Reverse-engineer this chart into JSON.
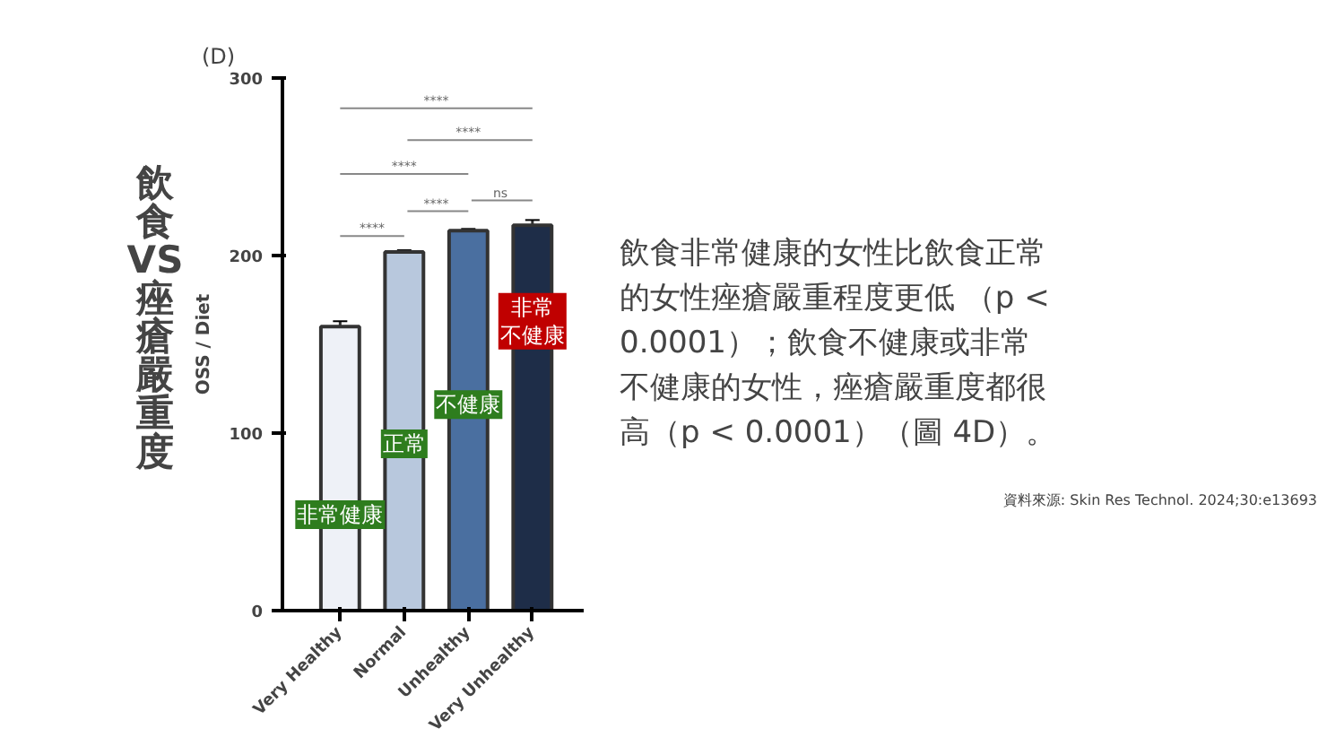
{
  "chart_data": {
    "type": "bar",
    "title": "飲食VS痤瘡嚴重度",
    "subtitle": "飲食非常健康的女性比飲食正常的女性痤瘡嚴重程度更低 （p < 0.0001）；飲食不健康或非常不健康的女性，痤瘡嚴重度都很高（p < 0.0001）（圖 4D）。",
    "ylabel": "OSS / Diet",
    "categories": [
      "Very Healthy",
      "Normal",
      "Unhealthy",
      "Very Unhealthy"
    ],
    "values": [
      160,
      202,
      214,
      217
    ],
    "errors": [
      3,
      1,
      1,
      3
    ],
    "colors": [
      "#eef1f7",
      "#b8c8dd",
      "#4a6fa0",
      "#1e2d48"
    ],
    "ylim": [
      0,
      300
    ],
    "yticks": [
      0,
      100,
      200,
      300
    ],
    "grid": false,
    "annotations": [
      "(D)",
      "****",
      "****",
      "****",
      "****",
      "ns",
      "****",
      "非常健康",
      "正常",
      "不健康",
      "非常不健康",
      "資料來源: Skin Res Technol. 2024;30:e13693"
    ]
  }
}
